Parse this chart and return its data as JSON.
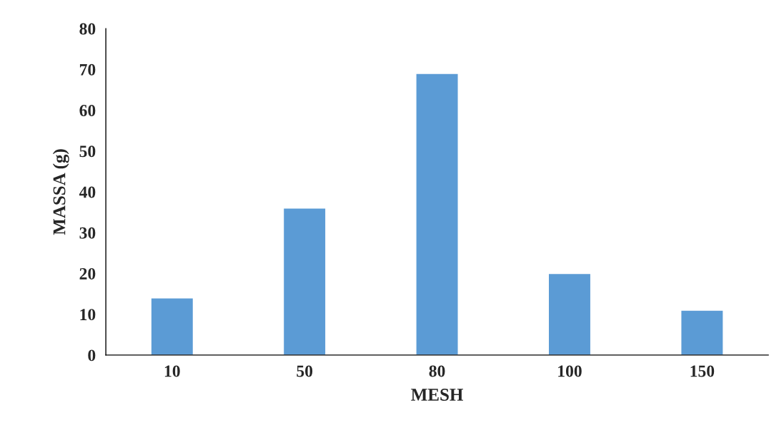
{
  "chart_data": {
    "type": "bar",
    "xlabel": "MESH",
    "ylabel": "MASSA (g)",
    "categories": [
      "10",
      "50",
      "80",
      "100",
      "150"
    ],
    "values": [
      14,
      36,
      69,
      20,
      11
    ],
    "color": "#5b9bd5",
    "ylim": [
      0,
      80
    ],
    "yticks": [
      0,
      10,
      20,
      30,
      40,
      50,
      60,
      70,
      80
    ],
    "grid": false,
    "legend": false
  }
}
